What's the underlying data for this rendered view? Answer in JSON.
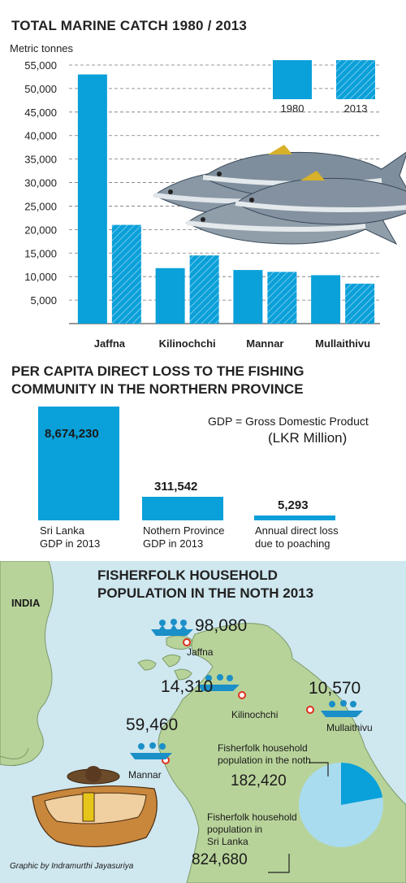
{
  "section1": {
    "title": "TOTAL MARINE CATCH 1980 / 2013",
    "unit": "Metric tonnes"
  },
  "chart_data": [
    {
      "type": "bar",
      "title": "TOTAL MARINE CATCH 1980 / 2013",
      "ylabel": "Metric tonnes",
      "categories": [
        "Jaffna",
        "Kilinochchi",
        "Mannar",
        "Mullaithivu"
      ],
      "series": [
        {
          "name": "1980",
          "values": [
            53000,
            11800,
            11400,
            10300
          ],
          "color": "#0aa0d9",
          "pattern": "solid"
        },
        {
          "name": "2013",
          "values": [
            21000,
            14500,
            11000,
            8500
          ],
          "color": "#0aa0d9",
          "pattern": "hatched"
        }
      ],
      "ylim": [
        0,
        55000
      ],
      "yticks": [
        "5,000",
        "10,000",
        "15,000",
        "20,000",
        "25,000",
        "30,000",
        "35,000",
        "40,000",
        "45,000",
        "50,000",
        "55,000"
      ],
      "grid": true,
      "legend": "top-right"
    },
    {
      "type": "bar",
      "title": "PER CAPITA DIRECT LOSS TO THE FISHING COMMUNITY IN THE NORTHERN PROVINCE",
      "unit": "(LKR Million)",
      "note": "GDP = Gross Domestic Product",
      "items": [
        {
          "value_label": "8,674,230",
          "value": 8674230,
          "label_line1": "Sri Lanka",
          "label_line2": "GDP in 2013"
        },
        {
          "value_label": "311,542",
          "value": 311542,
          "label_line1": "Nothern Province",
          "label_line2": "GDP in 2013"
        },
        {
          "value_label": "5,293",
          "value": 5293,
          "label_line1": "Annual direct loss",
          "label_line2": "due to poaching"
        }
      ]
    },
    {
      "type": "pie",
      "title": "FISHERFOLK HOUSEHOLD POPULATION IN THE NOTH 2013",
      "slices": [
        {
          "label_line1": "Fisherfolk household",
          "label_line2": "population in the noth",
          "value_label": "182,420",
          "value": 182420,
          "color": "#0aa0d9"
        },
        {
          "label_line1": "Fisherfolk household",
          "label_line2": "population in",
          "label_line3": "Sri Lanka",
          "value_label": "824,680",
          "value": 824680,
          "color": "#a9dcef"
        }
      ]
    }
  ],
  "section2": {
    "title_line1": "PER CAPITA DIRECT LOSS TO THE FISHING",
    "title_line2": "COMMUNITY IN THE NORTHERN PROVINCE",
    "note": "GDP = Gross Domestic Product",
    "unit": "(LKR Million)"
  },
  "section3": {
    "title_line1": "FISHERFOLK HOUSEHOLD",
    "title_line2": "POPULATION IN THE NOTH 2013",
    "country": "INDIA",
    "districts": [
      {
        "name": "Jaffna",
        "value": "98,080"
      },
      {
        "name": "Kilinochchi",
        "value": "14,310"
      },
      {
        "name": "Mannar",
        "value": "59,460"
      },
      {
        "name": "Mullaithivu",
        "value": "10,570"
      }
    ],
    "credit": "Graphic by Indramurthi Jayasuriya"
  },
  "colors": {
    "bar": "#0aa0d9",
    "sea": "#cfe7ef",
    "land": "#b8d39a",
    "pie_light": "#a9dcef"
  }
}
